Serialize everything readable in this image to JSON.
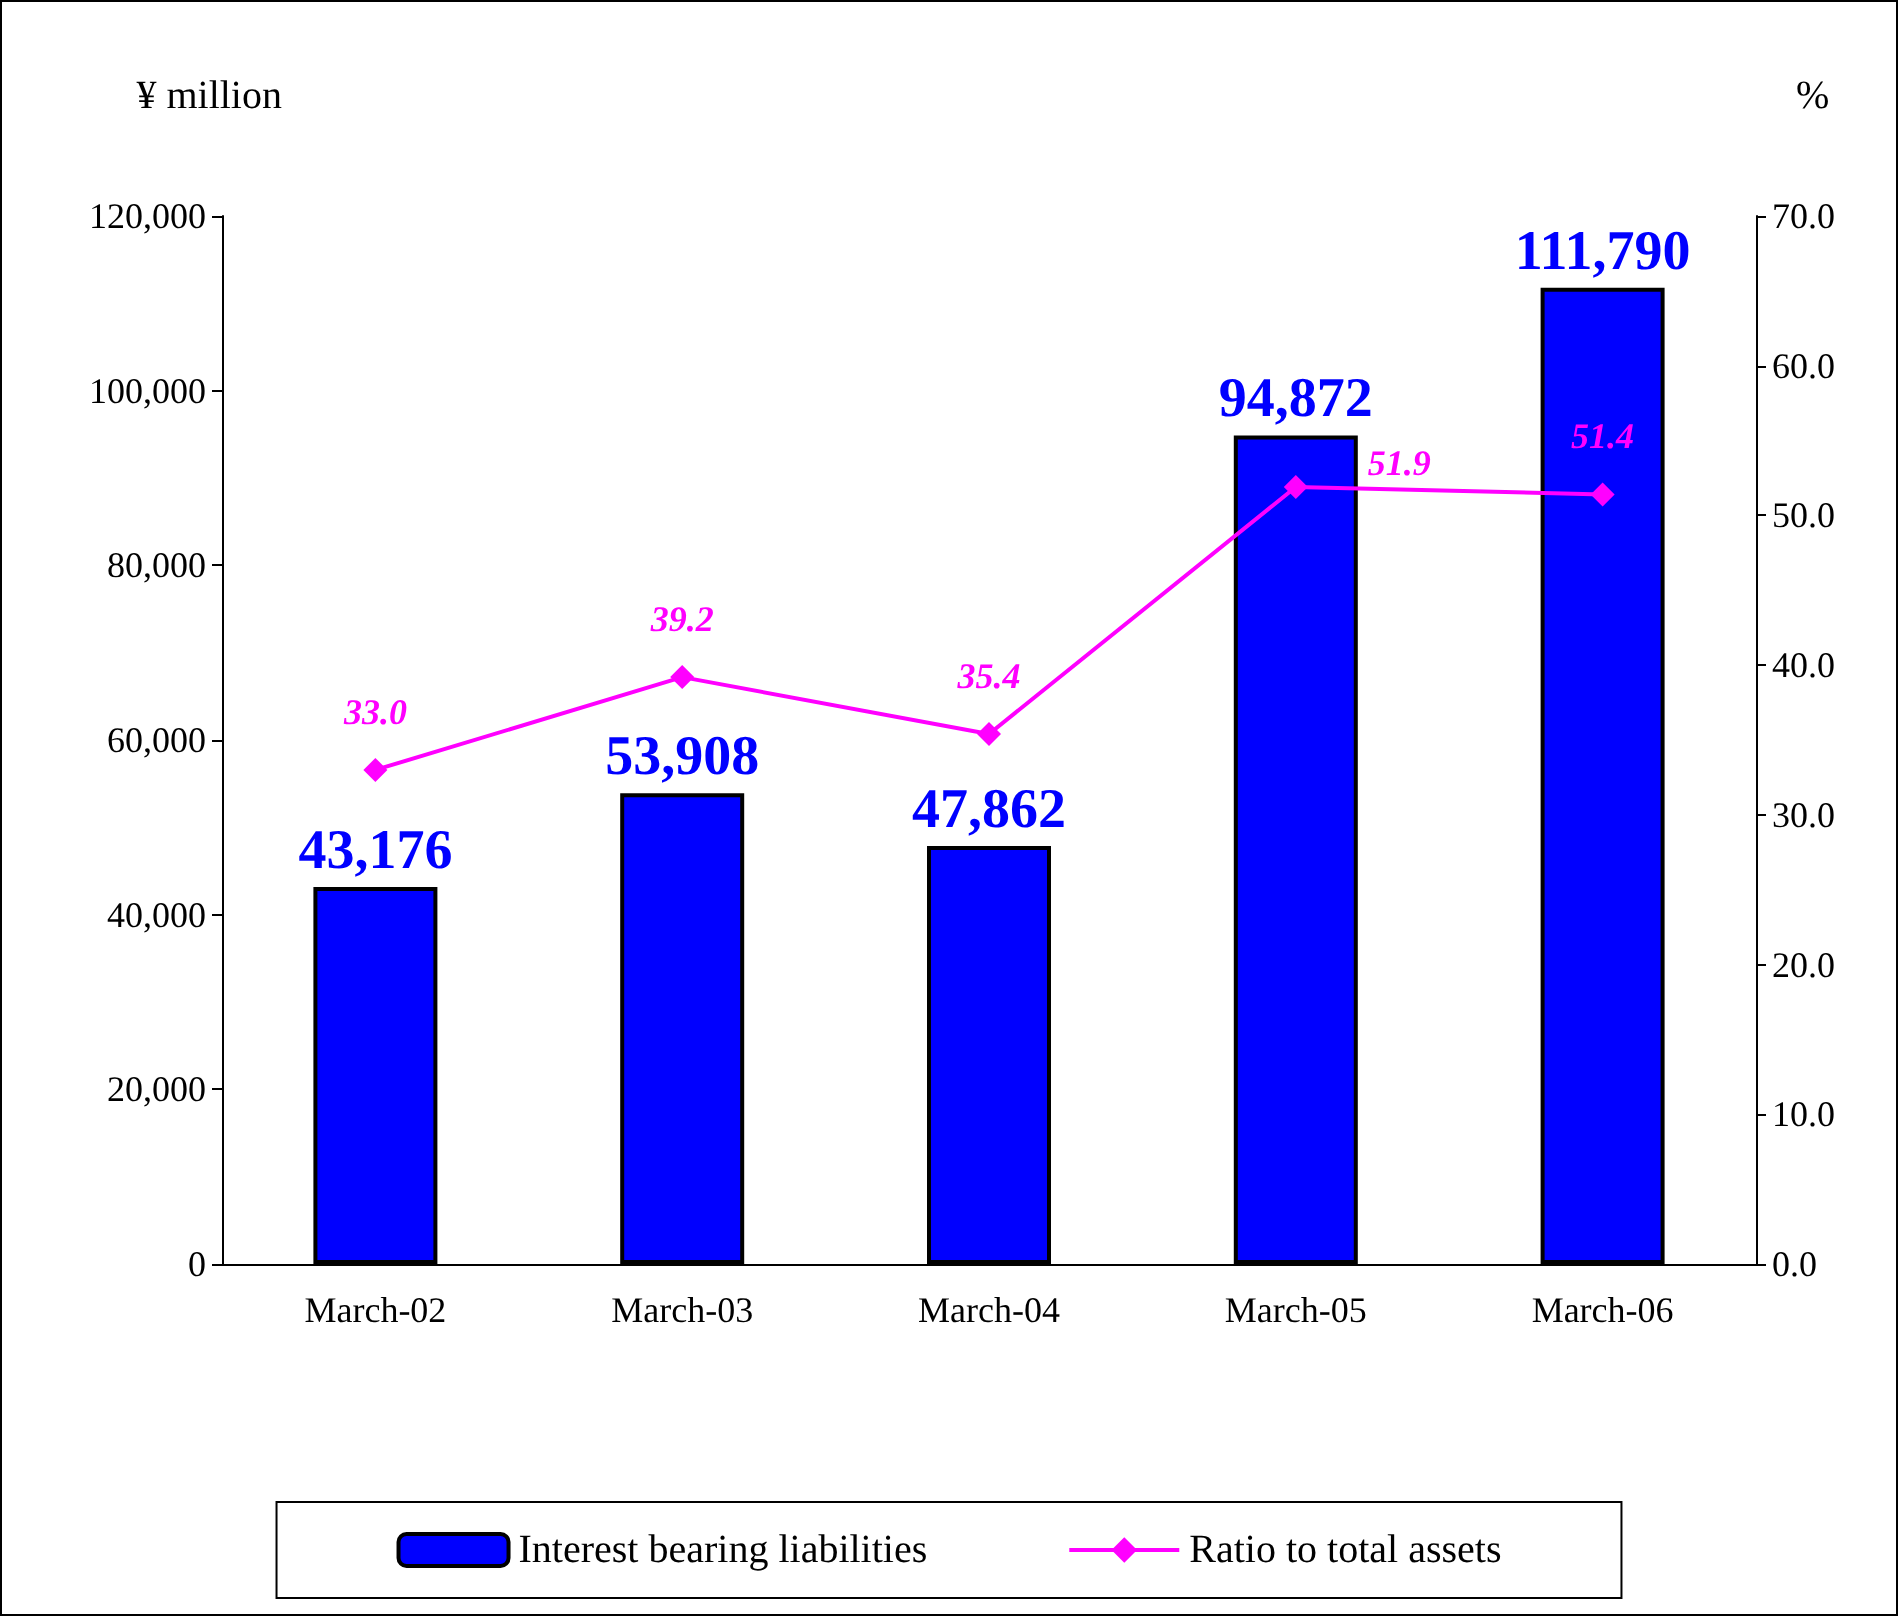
{
  "chart_data": {
    "type": "bar",
    "ylabel": "¥ million",
    "y2label": "%",
    "categories": [
      "March-02",
      "March-03",
      "March-04",
      "March-05",
      "March-06"
    ],
    "series": [
      {
        "name": "Interest bearing liabilities",
        "color": "#0000ff",
        "values": [
          43176,
          53908,
          47862,
          94872,
          111790
        ],
        "value_labels": [
          "43,176",
          "53,908",
          "47,862",
          "94,872",
          "111,790"
        ]
      },
      {
        "name": "Ratio to total assets",
        "type": "line",
        "axis": "y2",
        "color": "#ff00ff",
        "marker": "diamond",
        "values": [
          33.0,
          39.2,
          35.4,
          51.9,
          51.4
        ],
        "value_labels": [
          "33.0",
          "39.2",
          "35.4",
          "51.9",
          "51.4"
        ]
      }
    ],
    "ylim": [
      0,
      120000
    ],
    "yticks": [
      {
        "value": 0,
        "label": "0"
      },
      {
        "value": 20000,
        "label": "20,000"
      },
      {
        "value": 40000,
        "label": "40,000"
      },
      {
        "value": 60000,
        "label": "60,000"
      },
      {
        "value": 80000,
        "label": "80,000"
      },
      {
        "value": 100000,
        "label": "100,000"
      },
      {
        "value": 120000,
        "label": "120,000"
      }
    ],
    "y2lim": [
      0,
      70
    ],
    "y2ticks": [
      {
        "value": 0,
        "label": "0.0"
      },
      {
        "value": 10,
        "label": "10.0"
      },
      {
        "value": 20,
        "label": "20.0"
      },
      {
        "value": 30,
        "label": "30.0"
      },
      {
        "value": 40,
        "label": "40.0"
      },
      {
        "value": 50,
        "label": "50.0"
      },
      {
        "value": 60,
        "label": "60.0"
      },
      {
        "value": 70,
        "label": "70.0"
      }
    ],
    "legend": "bottom"
  }
}
